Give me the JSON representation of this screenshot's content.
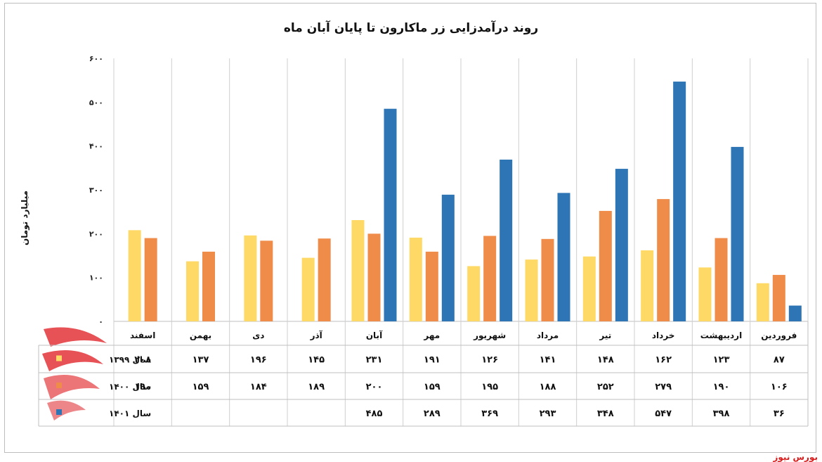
{
  "chart_data": {
    "type": "bar",
    "title": "روند درآمدزایی زر ماکارون تا پایان آبان ماه",
    "ylabel": "میلیارد تومان",
    "ylim": [
      0,
      600
    ],
    "yticks": [
      "۰",
      "۱۰۰",
      "۲۰۰",
      "۳۰۰",
      "۴۰۰",
      "۵۰۰",
      "۶۰۰"
    ],
    "categories": [
      "فروردین",
      "اردیبهشت",
      "خرداد",
      "تیر",
      "مرداد",
      "شهریور",
      "مهر",
      "آبان",
      "آذر",
      "دی",
      "بهمن",
      "اسفند"
    ],
    "series": [
      {
        "name": "سال ۱۳۹۹",
        "color": "#FFD966",
        "values": [
          87,
          123,
          162,
          148,
          141,
          126,
          191,
          231,
          145,
          196,
          137,
          208
        ],
        "labels": [
          "۸۷",
          "۱۲۳",
          "۱۶۲",
          "۱۴۸",
          "۱۴۱",
          "۱۲۶",
          "۱۹۱",
          "۲۳۱",
          "۱۴۵",
          "۱۹۶",
          "۱۳۷",
          "۲۰۸"
        ]
      },
      {
        "name": "سال ۱۴۰۰",
        "color": "#F08C4A",
        "values": [
          106,
          190,
          279,
          252,
          188,
          195,
          159,
          200,
          189,
          184,
          159,
          190
        ],
        "labels": [
          "۱۰۶",
          "۱۹۰",
          "۲۷۹",
          "۲۵۲",
          "۱۸۸",
          "۱۹۵",
          "۱۵۹",
          "۲۰۰",
          "۱۸۹",
          "۱۸۴",
          "۱۵۹",
          "۱۹۰"
        ]
      },
      {
        "name": "سال ۱۴۰۱",
        "color": "#2E75B6",
        "values": [
          36,
          398,
          547,
          348,
          293,
          369,
          289,
          485,
          null,
          null,
          null,
          null
        ],
        "labels": [
          "۳۶",
          "۳۹۸",
          "۵۴۷",
          "۳۴۸",
          "۲۹۳",
          "۳۶۹",
          "۲۸۹",
          "۴۸۵",
          "",
          "",
          "",
          ""
        ]
      }
    ],
    "legend": "data-table rows, left"
  },
  "source": "بورس نیوز",
  "watermark_text": "بورس نیوز"
}
